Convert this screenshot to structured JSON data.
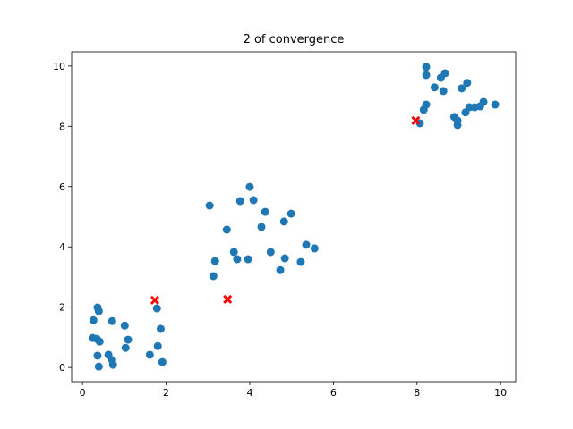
{
  "chart_data": {
    "type": "scatter",
    "title": "2  of convergence",
    "xlim": [
      -0.26,
      10.36
    ],
    "ylim": [
      -0.47,
      10.47
    ],
    "xticks": [
      0,
      2,
      4,
      6,
      8,
      10
    ],
    "yticks": [
      0,
      2,
      4,
      6,
      8,
      10
    ],
    "series": [
      {
        "color": "#1f77b4",
        "marker": "circle",
        "x": [
          0.36,
          0.39,
          0.26,
          0.71,
          1.01,
          1.78,
          1.87,
          0.24,
          0.34,
          0.41,
          1.09,
          1.03,
          1.8,
          0.36,
          0.62,
          0.71,
          0.73,
          0.39,
          1.61,
          1.91,
          4.0,
          3.04,
          3.77,
          4.09,
          4.37,
          4.99,
          4.82,
          4.28,
          3.45,
          5.35,
          5.55,
          3.62,
          4.5,
          3.17,
          3.7,
          3.96,
          4.84,
          5.22,
          4.73,
          3.13,
          8.22,
          8.22,
          8.67,
          8.57,
          8.42,
          8.63,
          9.2,
          9.07,
          8.22,
          8.16,
          9.59,
          9.87,
          9.25,
          9.38,
          9.51,
          9.16,
          8.89,
          8.97,
          8.97,
          8.07
        ],
        "values": [
          1.99,
          1.87,
          1.57,
          1.54,
          1.39,
          1.96,
          1.28,
          0.98,
          0.95,
          0.86,
          0.92,
          0.65,
          0.71,
          0.39,
          0.42,
          0.24,
          0.09,
          0.03,
          0.42,
          0.18,
          5.99,
          5.37,
          5.52,
          5.55,
          5.16,
          5.1,
          4.84,
          4.66,
          4.57,
          4.07,
          3.95,
          3.83,
          3.83,
          3.53,
          3.59,
          3.59,
          3.62,
          3.5,
          3.23,
          3.03,
          9.97,
          9.7,
          9.76,
          9.61,
          9.29,
          9.17,
          9.44,
          9.26,
          8.72,
          8.55,
          8.81,
          8.72,
          8.63,
          8.63,
          8.66,
          8.46,
          8.31,
          8.19,
          8.04,
          8.1
        ]
      },
      {
        "color": "#ff0000",
        "marker": "x",
        "x": [
          1.73,
          3.47,
          7.97
        ],
        "values": [
          2.23,
          2.26,
          8.19
        ]
      }
    ]
  }
}
